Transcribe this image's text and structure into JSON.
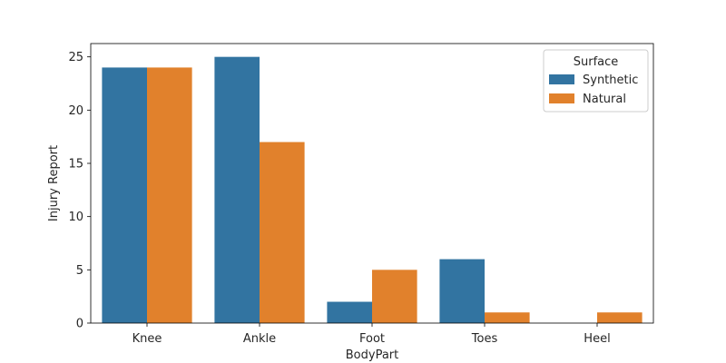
{
  "chart_data": {
    "type": "bar",
    "title": "",
    "xlabel": "BodyPart",
    "ylabel": "Injury Report",
    "categories": [
      "Knee",
      "Ankle",
      "Foot",
      "Toes",
      "Heel"
    ],
    "series": [
      {
        "name": "Synthetic",
        "values": [
          24,
          25,
          2,
          6,
          0
        ],
        "color": "#3274a1"
      },
      {
        "name": "Natural",
        "values": [
          24,
          17,
          5,
          1,
          1
        ],
        "color": "#e1812c"
      }
    ],
    "ylim": [
      0,
      26.25
    ],
    "yticks": [
      0,
      5,
      10,
      15,
      20,
      25
    ],
    "grid": false,
    "legend": {
      "title": "Surface",
      "placement": "top-right"
    }
  }
}
